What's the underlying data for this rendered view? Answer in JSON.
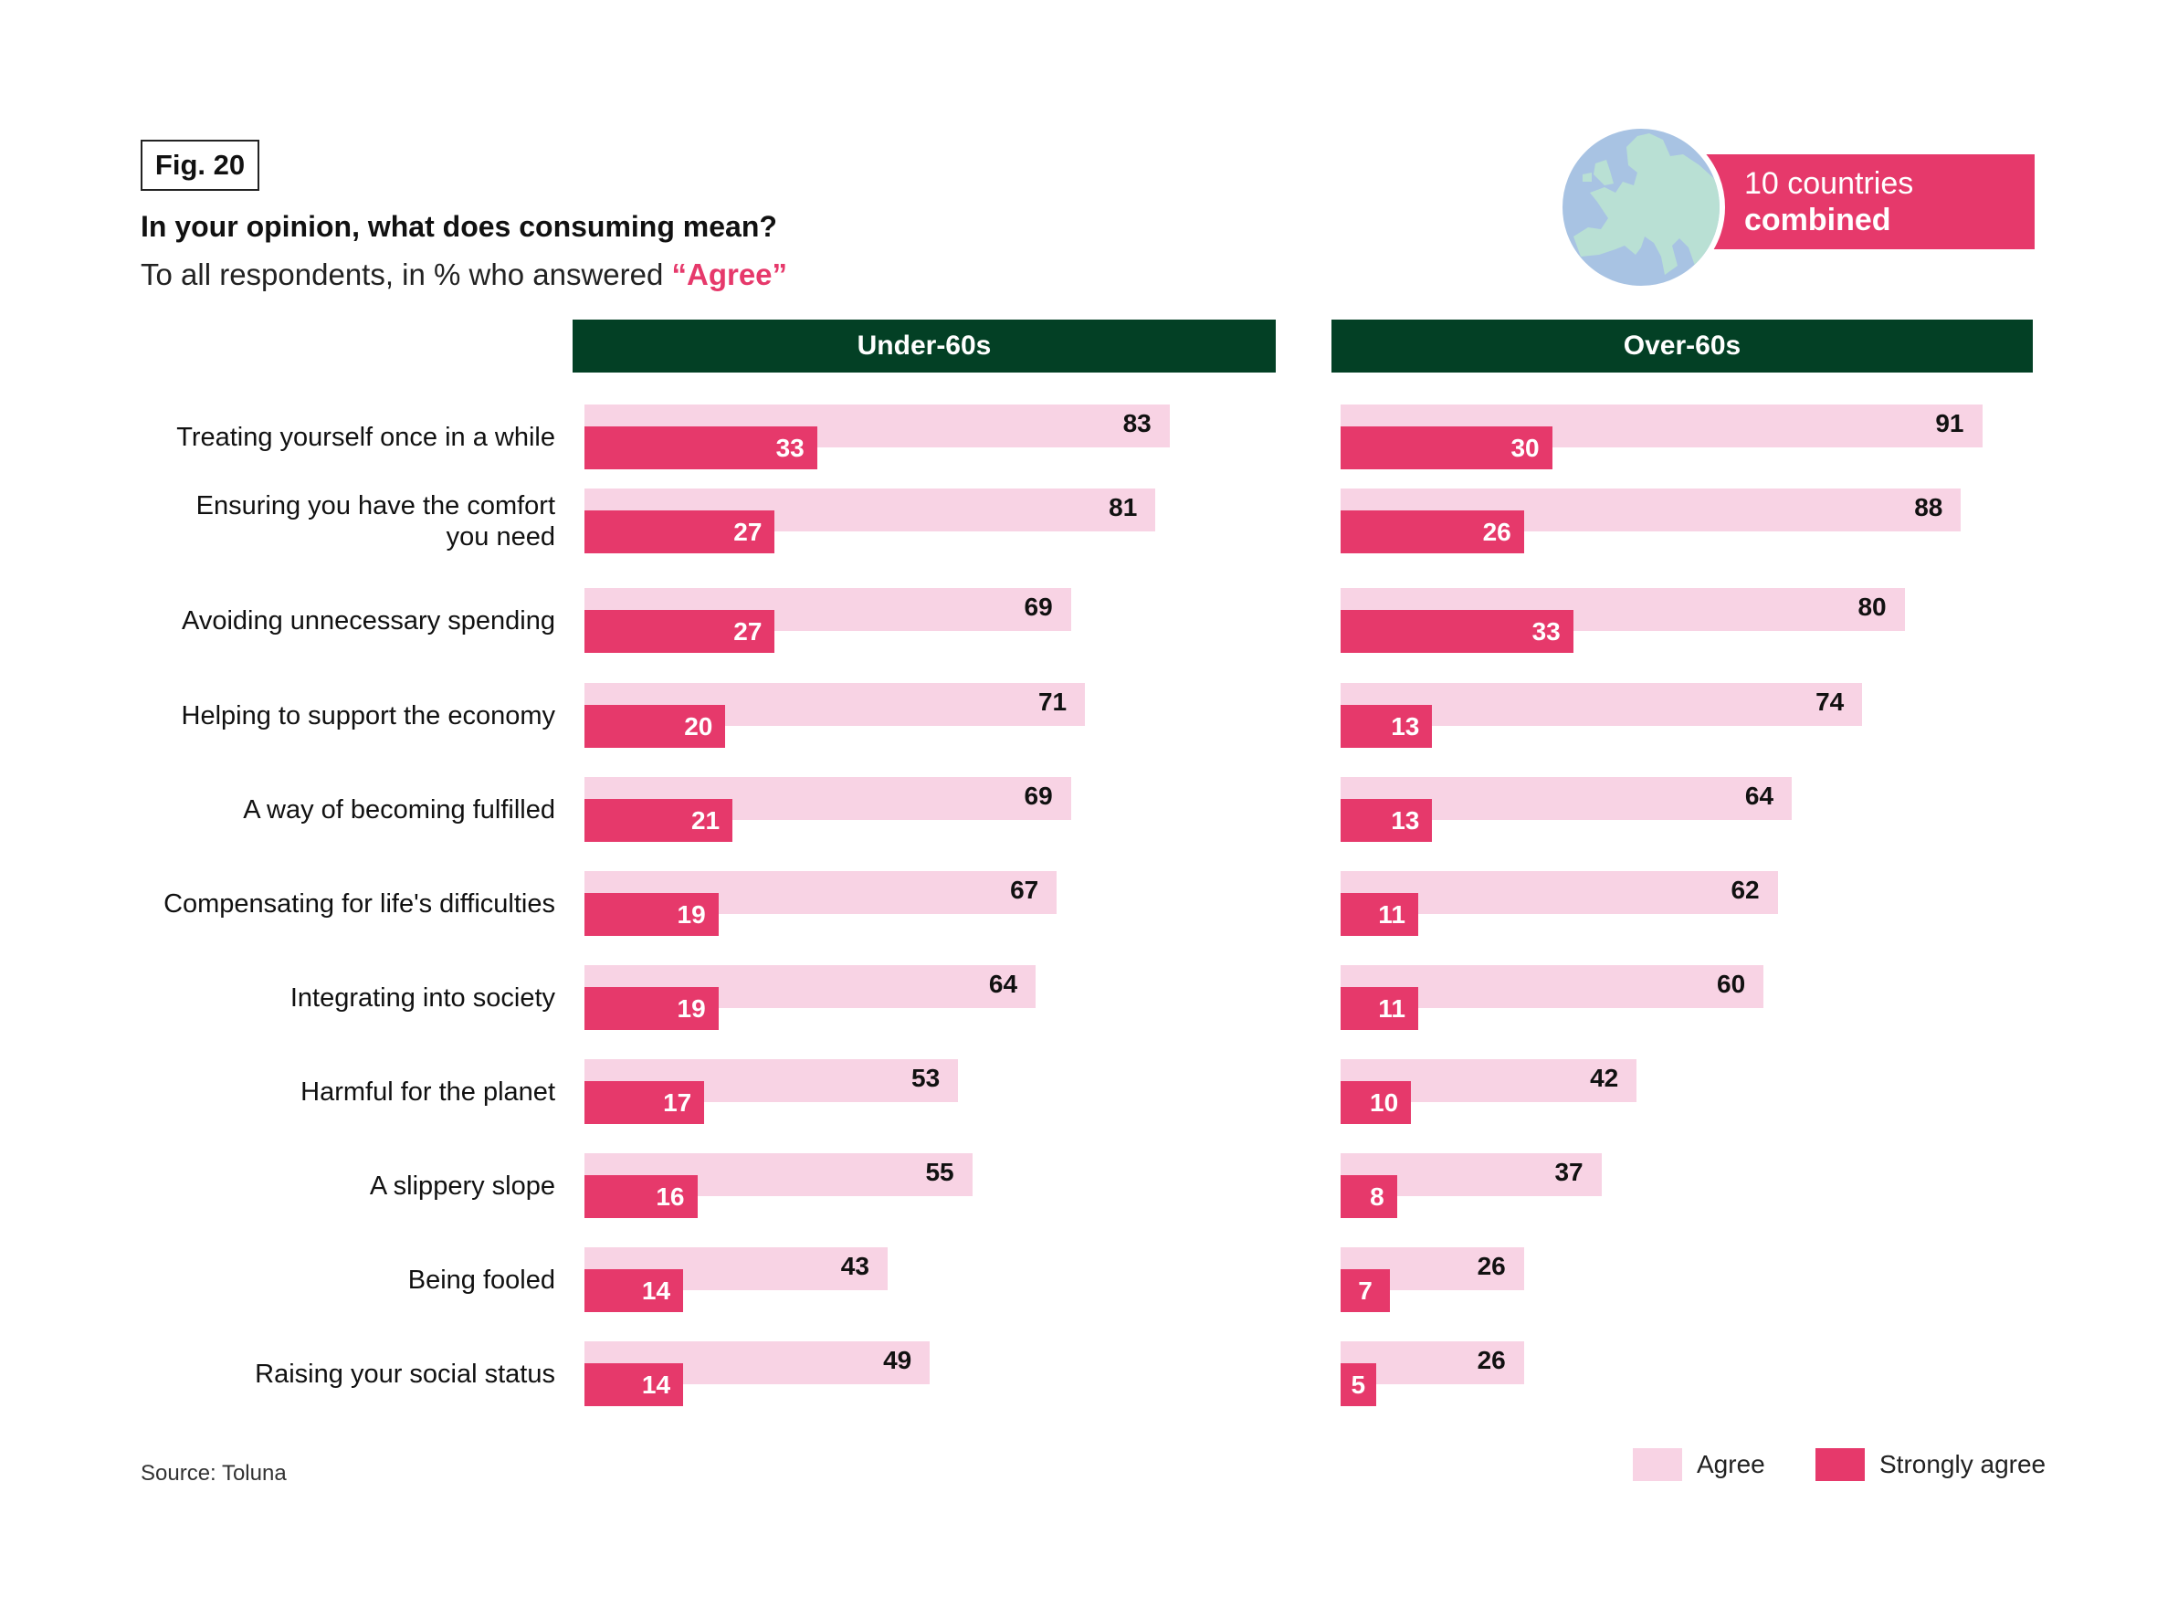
{
  "figure": {
    "label": "Fig. 20",
    "title": "In your opinion, what does consuming mean?",
    "subtitle_prefix": "To all respondents, in % who answered ",
    "subtitle_highlight": "“Agree”",
    "badge_line1": "10 countries",
    "badge_line2": "combined",
    "globe_icon": "europe-globe-icon",
    "source": "Source: Toluna"
  },
  "colors": {
    "agree": "#f8d3e4",
    "strongly_agree": "#e6396b",
    "header_bg": "#034025",
    "highlight": "#e6396b"
  },
  "chart_data": {
    "type": "bar",
    "orientation": "horizontal",
    "title": "In your opinion, what does consuming mean?",
    "subtitle": "To all respondents, in % who answered “Agree”",
    "categories": [
      "Treating yourself once in a while",
      "Ensuring you have the comfort you need",
      "Avoiding unnecessary spending",
      "Helping to support the economy",
      "A way of becoming fulfilled",
      "Compensating for life's difficulties",
      "Integrating into society",
      "Harmful for the planet",
      "A slippery slope",
      "Being fooled",
      "Raising your social status"
    ],
    "category_lines": [
      [
        "Treating yourself once in a while"
      ],
      [
        "Ensuring you have the comfort",
        "you need"
      ],
      [
        "Avoiding unnecessary spending"
      ],
      [
        "Helping to support the economy"
      ],
      [
        "A way of becoming fulfilled"
      ],
      [
        "Compensating for life's difficulties"
      ],
      [
        "Integrating into society"
      ],
      [
        "Harmful for the planet"
      ],
      [
        "A slippery slope"
      ],
      [
        "Being fooled"
      ],
      [
        "Raising your social status"
      ]
    ],
    "panels": [
      {
        "name": "Under-60s",
        "series": [
          {
            "name": "Agree",
            "values": [
              83,
              81,
              69,
              71,
              69,
              67,
              64,
              53,
              55,
              43,
              49
            ]
          },
          {
            "name": "Strongly agree",
            "values": [
              33,
              27,
              27,
              20,
              21,
              19,
              19,
              17,
              16,
              14,
              14
            ]
          }
        ]
      },
      {
        "name": "Over-60s",
        "series": [
          {
            "name": "Agree",
            "values": [
              91,
              88,
              80,
              74,
              64,
              62,
              60,
              42,
              37,
              26,
              26
            ]
          },
          {
            "name": "Strongly agree",
            "values": [
              30,
              26,
              33,
              13,
              13,
              11,
              11,
              10,
              8,
              7,
              5
            ]
          }
        ]
      }
    ],
    "legend": [
      "Agree",
      "Strongly agree"
    ],
    "legend_position": "bottom-right",
    "xlim": [
      0,
      100
    ],
    "unit": "%",
    "grid": false
  }
}
